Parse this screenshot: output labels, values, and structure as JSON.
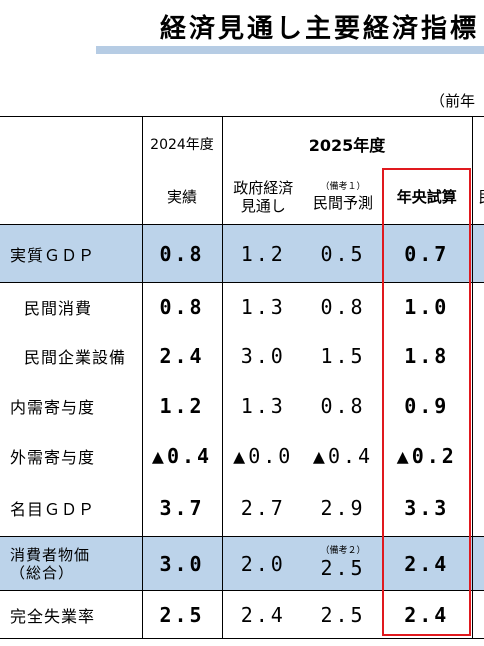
{
  "title": "経済見通し主要経済指標",
  "unit_note": "（前年",
  "header": {
    "year_2024": "2024年度",
    "year_2025": "2025年度",
    "col_actual": "実績",
    "col_gov": "政府経済見通し",
    "col_gov_line1": "政府経済",
    "col_gov_line2": "見通し",
    "col_private": "民間予測",
    "col_private_note": "（備考１）",
    "col_midyear": "年央試算",
    "col_cut": "民"
  },
  "rows": [
    {
      "label": "実質ＧＤＰ",
      "actual": "0.8",
      "gov": "1.2",
      "private": "0.5",
      "midyear": "0.7",
      "highlight": true
    },
    {
      "label": "民間消費",
      "actual": "0.8",
      "gov": "1.3",
      "private": "0.8",
      "midyear": "1.0",
      "sub": true
    },
    {
      "label": "民間企業設備",
      "actual": "2.4",
      "gov": "3.0",
      "private": "1.5",
      "midyear": "1.8",
      "sub": true
    },
    {
      "label": "内需寄与度",
      "actual": "1.2",
      "gov": "1.3",
      "private": "0.8",
      "midyear": "0.9"
    },
    {
      "label": "外需寄与度",
      "actual": "▲0.4",
      "gov": "▲0.0",
      "private": "▲0.4",
      "midyear": "▲0.2"
    },
    {
      "label": "名目ＧＤＰ",
      "actual": "3.7",
      "gov": "2.7",
      "private": "2.9",
      "midyear": "3.3"
    },
    {
      "label_line1": "消費者物価",
      "label_line2": "（総合）",
      "actual": "3.0",
      "gov": "2.0",
      "private": "2.5",
      "private_note": "（備考２）",
      "midyear": "2.4",
      "highlight": true
    },
    {
      "label": "完全失業率",
      "actual": "2.5",
      "gov": "2.4",
      "private": "2.5",
      "midyear": "2.4"
    }
  ],
  "colors": {
    "highlight": "#bcd3ea",
    "title_bar": "#b6cce4",
    "red_box": "#e0191e"
  }
}
